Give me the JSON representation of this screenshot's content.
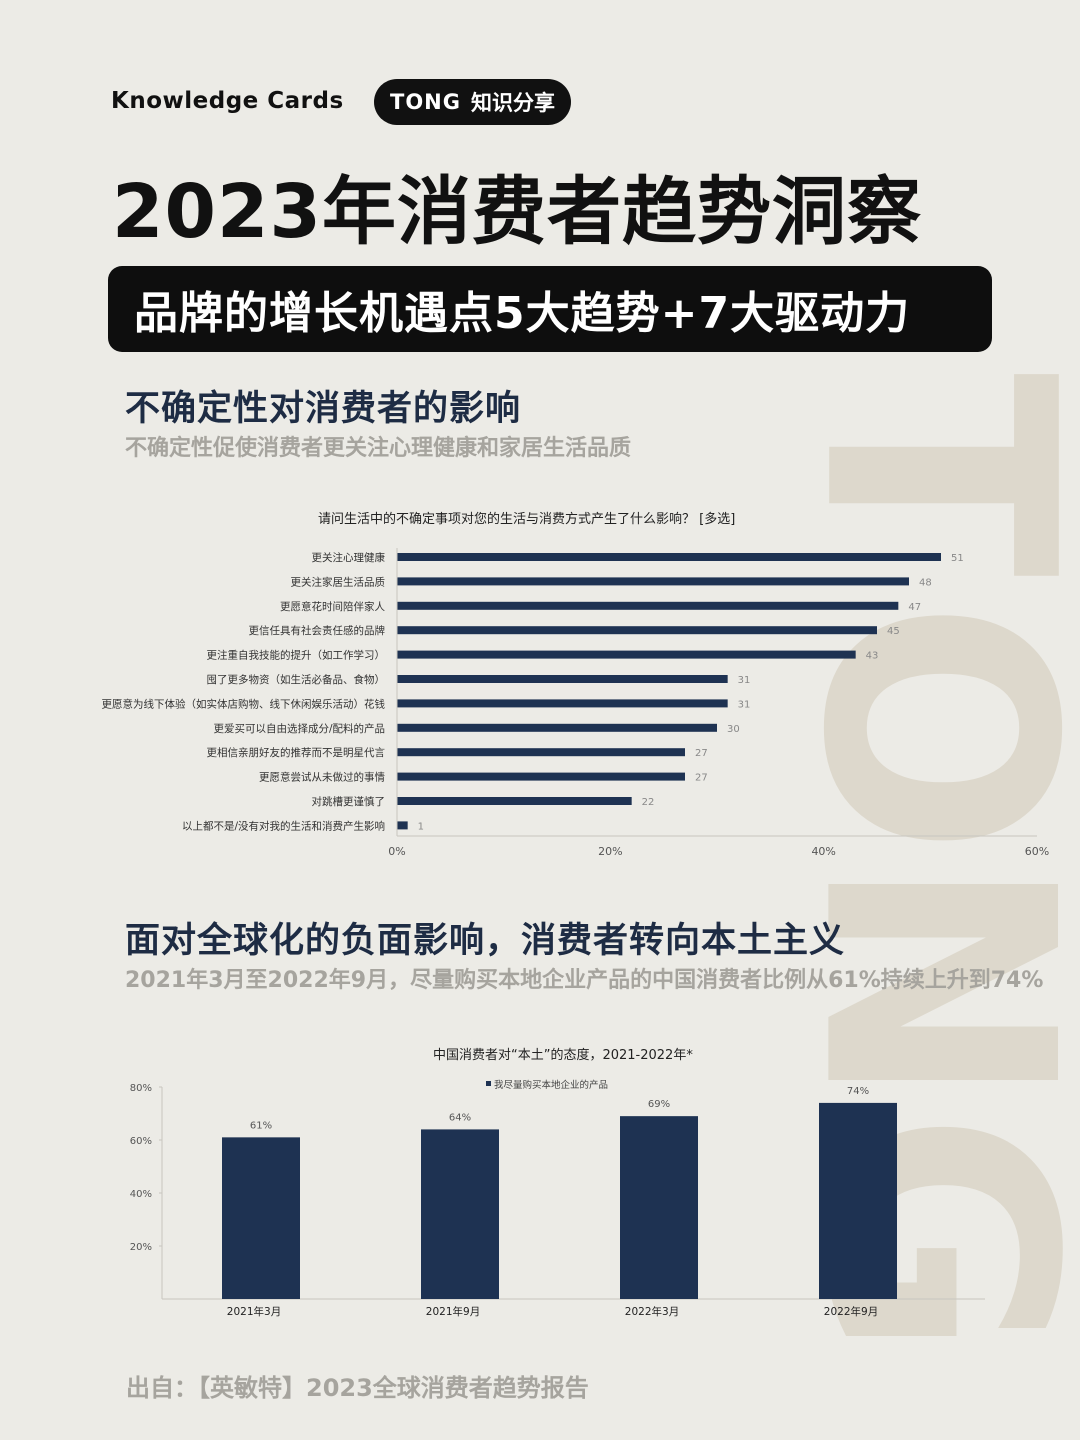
{
  "header": {
    "knowledge_cards": "Knowledge Cards",
    "brand": "TONG",
    "brand_tag": "知识分享"
  },
  "title": "2023年消费者趋势洞察",
  "banner": "品牌的增长机遇点5大趋势+7大驱动力",
  "watermark": "TONG",
  "section1": {
    "title": "不确定性对消费者的影响",
    "subtitle": "不确定性促使消费者更关注心理健康和家居生活品质"
  },
  "section2": {
    "title": "面对全球化的负面影响，消费者转向本土主义",
    "subtitle": "2021年3月至2022年9月，尽量购买本地企业产品的中国消费者比例从61%持续上升到74%"
  },
  "source": "出自：【英敏特】2023全球消费者趋势报告",
  "colors": {
    "bar": "#1e3252",
    "watermark": "#ddd8cc"
  },
  "chart_data": [
    {
      "type": "bar",
      "orientation": "horizontal",
      "title": "请问生活中的不确定事项对您的生活与消费方式产生了什么影响？ [多选]",
      "categories": [
        "更关注心理健康",
        "更关注家居生活品质",
        "更愿意花时间陪伴家人",
        "更信任具有社会责任感的品牌",
        "更注重自我技能的提升（如工作学习）",
        "囤了更多物资（如生活必备品、食物）",
        "更愿意为线下体验（如实体店购物、线下休闲娱乐活动）花钱",
        "更爱买可以自由选择成分/配料的产品",
        "更相信亲朋好友的推荐而不是明星代言",
        "更愿意尝试从未做过的事情",
        "对跳槽更谨慎了",
        "以上都不是/没有对我的生活和消费产生影响"
      ],
      "values": [
        51,
        48,
        47,
        45,
        43,
        31,
        31,
        30,
        27,
        27,
        22,
        1
      ],
      "xlim": [
        0,
        60
      ],
      "xticks": [
        "0%",
        "20%",
        "40%",
        "60%"
      ]
    },
    {
      "type": "bar",
      "title": "中国消费者对“本土”的态度，2021-2022年*",
      "categories": [
        "2021年3月",
        "2021年9月",
        "2022年3月",
        "2022年9月"
      ],
      "series": [
        {
          "name": "我尽量购买本地企业的产品",
          "values": [
            61,
            64,
            69,
            74
          ]
        }
      ],
      "value_labels": [
        "61%",
        "64%",
        "69%",
        "74%"
      ],
      "ylim": [
        0,
        80
      ],
      "yticks": [
        "20%",
        "40%",
        "60%",
        "80%"
      ]
    }
  ]
}
